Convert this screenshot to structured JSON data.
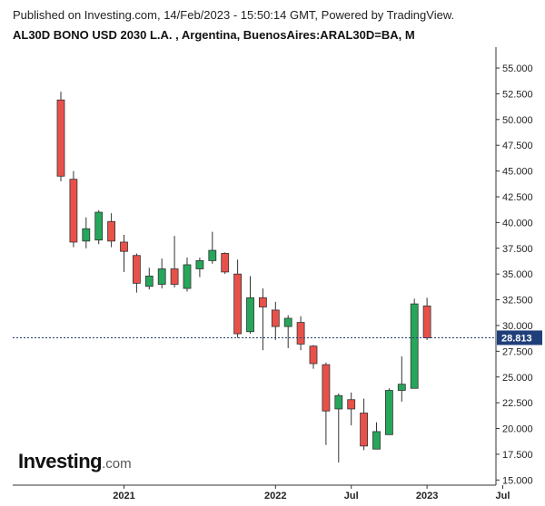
{
  "header": {
    "published": "Published on Investing.com, 14/Feb/2023 - 15:50:14 GMT, Powered by TradingView.",
    "title": "AL30D BONO USD 2030 L.A. , Argentina, BuenosAires:ARAL30D=BA, M"
  },
  "logo": {
    "main": "Investing",
    "suffix": ".com"
  },
  "colors": {
    "up": "#26a65b",
    "down": "#e8514a",
    "price_line": "#1f3f7a",
    "price_label_bg": "#1f3f7a"
  },
  "chart_data": {
    "type": "candlestick",
    "title": "AL30D BONO USD 2030 L.A. , Argentina, BuenosAires:ARAL30D=BA, M",
    "interval": "M",
    "y_axis_side": "right",
    "ylim": [
      14.5,
      56.5
    ],
    "y_ticks": [
      "15.000",
      "17.500",
      "20.000",
      "22.500",
      "25.000",
      "27.500",
      "30.000",
      "32.500",
      "35.000",
      "37.500",
      "40.000",
      "42.500",
      "45.000",
      "47.500",
      "50.000",
      "52.500",
      "55.000"
    ],
    "x_ticks": [
      {
        "label": "2021",
        "index": 5
      },
      {
        "label": "2022",
        "index": 17
      },
      {
        "label": "Jul",
        "index": 23
      },
      {
        "label": "2023",
        "index": 29
      },
      {
        "label": "Jul",
        "index": 35
      }
    ],
    "last_price": 28.813,
    "last_price_label": "28.813",
    "candles": [
      {
        "o": 51.9,
        "h": 52.7,
        "l": 44.0,
        "c": 44.5
      },
      {
        "o": 44.2,
        "h": 45.0,
        "l": 37.6,
        "c": 38.1
      },
      {
        "o": 38.2,
        "h": 40.5,
        "l": 37.5,
        "c": 39.4
      },
      {
        "o": 38.3,
        "h": 41.2,
        "l": 37.9,
        "c": 41.0
      },
      {
        "o": 40.1,
        "h": 40.9,
        "l": 37.6,
        "c": 38.2
      },
      {
        "o": 38.1,
        "h": 38.8,
        "l": 35.2,
        "c": 37.2
      },
      {
        "o": 36.8,
        "h": 37.0,
        "l": 33.2,
        "c": 34.1
      },
      {
        "o": 33.8,
        "h": 35.6,
        "l": 33.5,
        "c": 34.8
      },
      {
        "o": 34.0,
        "h": 36.5,
        "l": 33.6,
        "c": 35.5
      },
      {
        "o": 35.5,
        "h": 38.7,
        "l": 33.7,
        "c": 34.0
      },
      {
        "o": 33.6,
        "h": 36.6,
        "l": 33.3,
        "c": 35.9
      },
      {
        "o": 35.5,
        "h": 36.6,
        "l": 34.7,
        "c": 36.3
      },
      {
        "o": 36.3,
        "h": 39.1,
        "l": 36.0,
        "c": 37.3
      },
      {
        "o": 37.0,
        "h": 37.1,
        "l": 35.0,
        "c": 35.2
      },
      {
        "o": 35.0,
        "h": 36.4,
        "l": 28.8,
        "c": 29.2
      },
      {
        "o": 29.4,
        "h": 34.8,
        "l": 29.2,
        "c": 32.7
      },
      {
        "o": 32.7,
        "h": 33.6,
        "l": 27.6,
        "c": 31.8
      },
      {
        "o": 31.5,
        "h": 32.3,
        "l": 28.6,
        "c": 29.9
      },
      {
        "o": 29.9,
        "h": 31.0,
        "l": 27.8,
        "c": 30.7
      },
      {
        "o": 30.3,
        "h": 30.9,
        "l": 27.6,
        "c": 28.2
      },
      {
        "o": 28.0,
        "h": 28.1,
        "l": 25.8,
        "c": 26.3
      },
      {
        "o": 26.2,
        "h": 26.4,
        "l": 18.4,
        "c": 21.7
      },
      {
        "o": 21.9,
        "h": 23.4,
        "l": 16.7,
        "c": 23.2
      },
      {
        "o": 22.8,
        "h": 23.5,
        "l": 20.3,
        "c": 21.9
      },
      {
        "o": 21.5,
        "h": 22.9,
        "l": 17.9,
        "c": 18.3
      },
      {
        "o": 18.0,
        "h": 20.6,
        "l": 18.0,
        "c": 19.7
      },
      {
        "o": 19.4,
        "h": 23.9,
        "l": 19.4,
        "c": 23.7
      },
      {
        "o": 23.7,
        "h": 27.0,
        "l": 22.6,
        "c": 24.3
      },
      {
        "o": 23.9,
        "h": 32.6,
        "l": 23.9,
        "c": 32.1
      },
      {
        "o": 31.9,
        "h": 32.7,
        "l": 28.6,
        "c": 28.8
      }
    ]
  }
}
